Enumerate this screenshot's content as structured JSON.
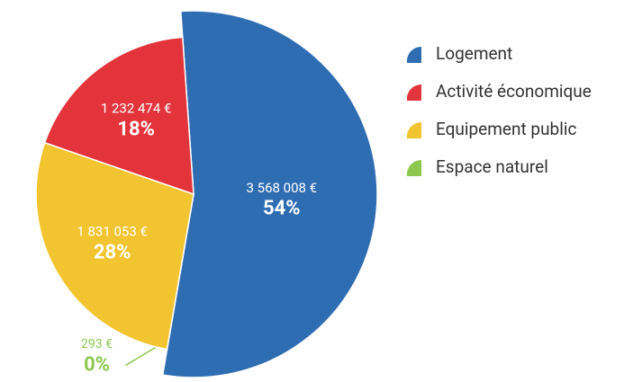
{
  "chart_data": {
    "type": "pie",
    "categories": [
      "Logement",
      "Activité économique",
      "Equipement public",
      "Espace naturel"
    ],
    "values": [
      3568008,
      1232474,
      1831053,
      293
    ],
    "value_labels": [
      "3 568 008 €",
      "1 232 474 €",
      "1 831 053 €",
      "293 €"
    ],
    "percent_labels": [
      "54%",
      "18%",
      "28%",
      "0%"
    ],
    "colors": [
      "#2f6db3",
      "#e3343c",
      "#f2c430",
      "#8cc850"
    ],
    "legend": "right"
  }
}
